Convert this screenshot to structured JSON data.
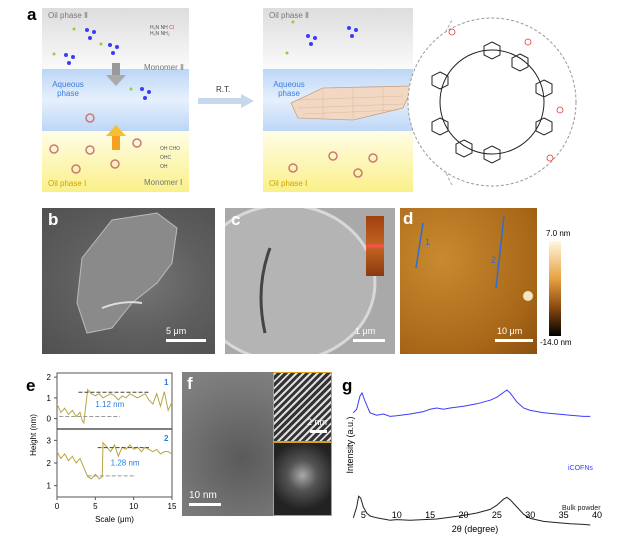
{
  "panel_labels": {
    "a": "a",
    "b": "b",
    "c": "c",
    "d": "d",
    "e": "e",
    "f": "f",
    "g": "g"
  },
  "panel_a": {
    "left": {
      "oil_phase_2": "Oil phase Ⅱ",
      "aqueous_phase": "Aqueous phase",
      "oil_phase_1": "Oil phase Ⅰ",
      "monomer_2": "Monomer Ⅱ",
      "monomer_1": "Monomer Ⅰ",
      "monomer_2_groups": [
        "H₂N",
        "NH",
        "Cl",
        "H₂N",
        "NH₂"
      ],
      "monomer_1_groups": [
        "OH",
        "CHO",
        "OHC",
        "OH"
      ]
    },
    "arrow_label": "R.T.",
    "right": {
      "oil_phase_2": "Oil phase Ⅱ",
      "aqueous_phase": "Aqueous phase",
      "oil_phase_1": "Oil phase Ⅰ"
    }
  },
  "panel_b": {
    "scale": "5 μm"
  },
  "panel_c": {
    "scale": "1 μm"
  },
  "panel_d": {
    "scale": "10 μm",
    "line_labels": [
      "1",
      "2"
    ],
    "colorbar_max": "7.0 nm",
    "colorbar_min": "-14.0 nm"
  },
  "panel_f": {
    "scale_main": "10 nm",
    "scale_inset": "2 nm"
  },
  "chart_data": [
    {
      "type": "line",
      "panel": "e",
      "xlabel": "Scale (μm)",
      "ylabel": "Height (nm)",
      "xlim": [
        0,
        15
      ],
      "xticks": [
        "0",
        "5",
        "10",
        "15"
      ],
      "subplots": [
        {
          "name": "1",
          "ylim": [
            -0.5,
            2.2
          ],
          "yticks": [
            "0",
            "1",
            "2"
          ],
          "annotation": "1.12 nm",
          "x": [
            0,
            0.5,
            1,
            1.5,
            2,
            2.5,
            3,
            3.3,
            3.5,
            4,
            4.5,
            5,
            5.5,
            6,
            6.5,
            7,
            7.5,
            8,
            8.5,
            9,
            9.5,
            10,
            10.5,
            11,
            11.5,
            12,
            12.5,
            13,
            13.5,
            14,
            14.5,
            15
          ],
          "y": [
            0.7,
            0.3,
            0.5,
            0.2,
            0.4,
            0.1,
            0.3,
            -0.1,
            -0.2,
            1.4,
            1.2,
            1.1,
            1.2,
            1.0,
            1.1,
            1.2,
            1.1,
            0.9,
            1.1,
            1.0,
            1.2,
            1.1,
            1.0,
            1.1,
            1.2,
            0.9,
            0.7,
            1.2,
            0.6,
            1.3,
            0.4,
            0.8
          ]
        },
        {
          "name": "2",
          "ylim": [
            0.5,
            3.5
          ],
          "yticks": [
            "1",
            "2",
            "3"
          ],
          "annotation": "1.28 nm",
          "x": [
            0,
            0.5,
            1,
            1.5,
            2,
            2.5,
            3,
            3.5,
            4,
            4.5,
            5,
            5.5,
            5.9,
            6,
            6.5,
            7,
            7.5,
            8,
            8.5,
            9,
            9.5,
            10,
            10.5,
            11,
            11.5,
            12,
            12.5,
            13,
            13.5,
            14,
            14.5,
            15
          ],
          "y": [
            2.5,
            2.2,
            2.4,
            2.1,
            2.3,
            2.0,
            2.2,
            1.8,
            1.4,
            1.3,
            1.5,
            1.3,
            1.4,
            2.9,
            2.7,
            2.5,
            2.8,
            2.3,
            2.7,
            2.6,
            2.8,
            2.6,
            2.7,
            2.5,
            2.7,
            2.6,
            2.5,
            2.6,
            2.4,
            2.5,
            2.5,
            2.4
          ]
        }
      ]
    },
    {
      "type": "line",
      "panel": "g",
      "xlabel": "2θ (degree)",
      "ylabel": "Intensity (a.u.)",
      "xlim": [
        3,
        40
      ],
      "xticks": [
        "5",
        "10",
        "15",
        "20",
        "25",
        "30",
        "35",
        "40"
      ],
      "series": [
        {
          "name": "iCOFNs",
          "color": "#3b3bff",
          "x": [
            3.5,
            4,
            4.5,
            4.8,
            5.3,
            6,
            7,
            8,
            9,
            10,
            12,
            14,
            15,
            16,
            17,
            18,
            20,
            22,
            24,
            25,
            26,
            26.5,
            27,
            28,
            29,
            30,
            32,
            34,
            36,
            38,
            39
          ],
          "y": [
            0.62,
            0.68,
            0.9,
            0.95,
            0.8,
            0.62,
            0.58,
            0.6,
            0.56,
            0.57,
            0.6,
            0.64,
            0.68,
            0.7,
            0.68,
            0.7,
            0.73,
            0.77,
            0.83,
            0.88,
            0.96,
            1.0,
            0.95,
            0.8,
            0.7,
            0.66,
            0.62,
            0.6,
            0.58,
            0.56,
            0.56
          ]
        },
        {
          "name": "Bulk powder",
          "color": "#222222",
          "x": [
            3.5,
            4,
            4.3,
            4.6,
            5,
            5.5,
            6,
            7,
            8,
            9,
            10,
            12,
            14,
            16,
            18,
            20,
            22,
            24,
            25,
            26,
            26.5,
            27,
            28,
            29,
            30,
            32,
            34,
            36,
            38,
            39
          ],
          "y": [
            0.12,
            0.3,
            0.48,
            0.45,
            0.3,
            0.2,
            0.15,
            0.12,
            0.1,
            0.08,
            0.09,
            0.08,
            0.09,
            0.1,
            0.13,
            0.16,
            0.2,
            0.26,
            0.33,
            0.43,
            0.46,
            0.42,
            0.3,
            0.18,
            0.11,
            0.06,
            0.04,
            0.02,
            0.01,
            0.0
          ]
        }
      ]
    }
  ]
}
